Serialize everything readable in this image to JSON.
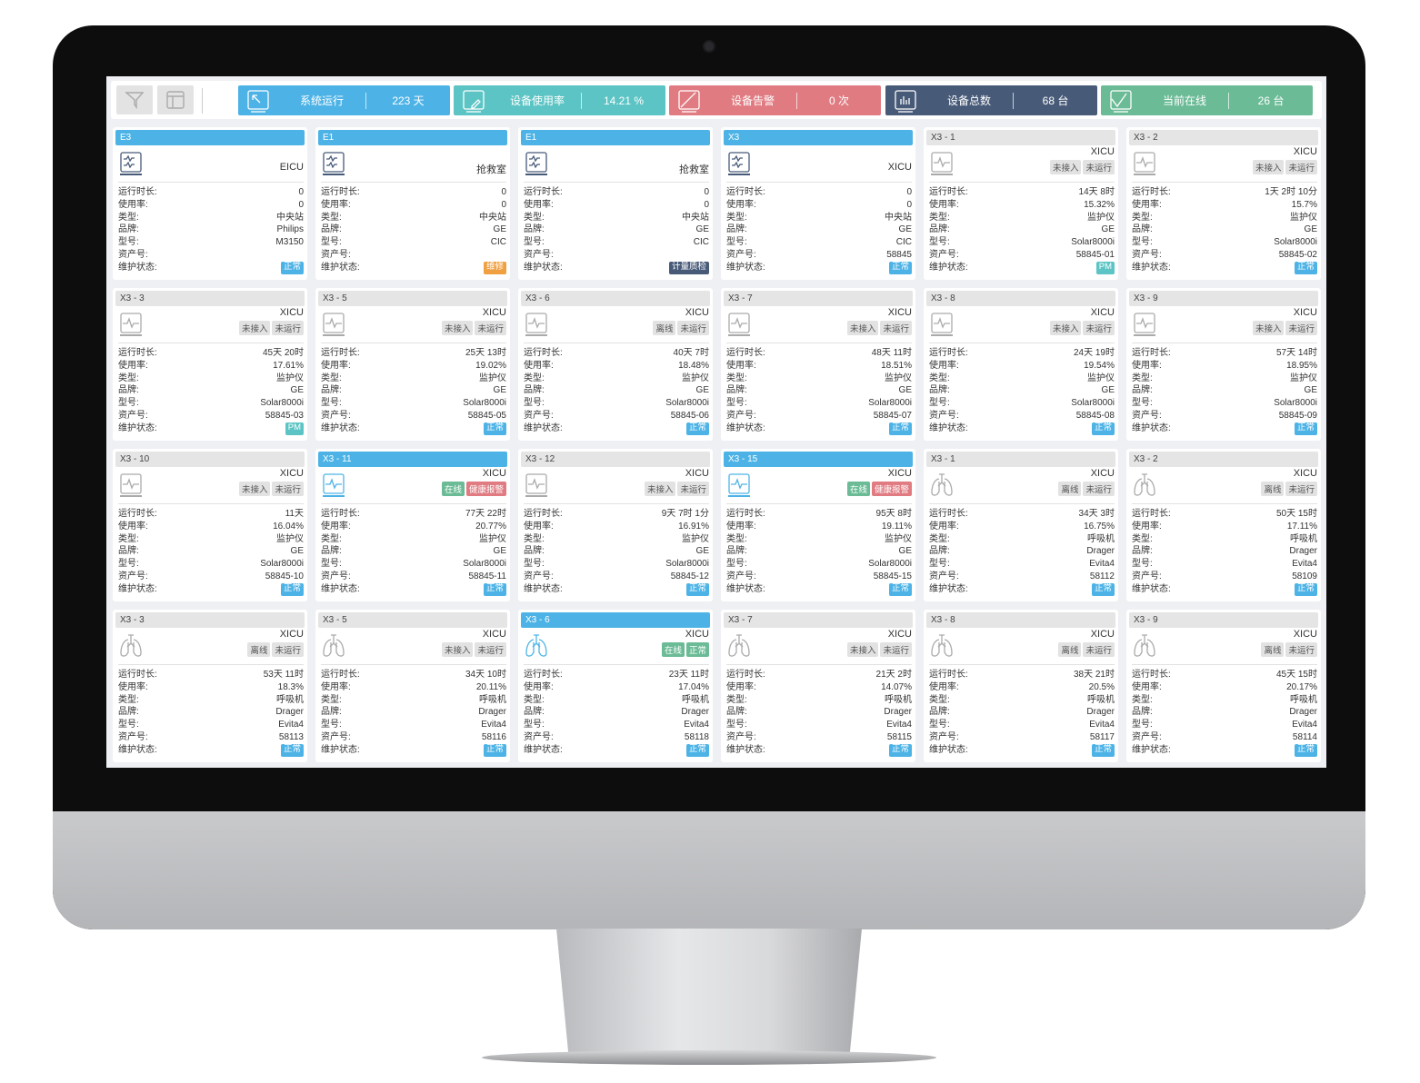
{
  "toolbar": {
    "filter_icon": "filter-icon",
    "layout_icon": "layout-icon"
  },
  "stats": [
    {
      "label": "系统运行",
      "value": "223 天",
      "color": "#4db3e6",
      "icon": "arrow-icon"
    },
    {
      "label": "设备使用率",
      "value": "14.21 %",
      "color": "#5cc4c4",
      "icon": "edit-icon"
    },
    {
      "label": "设备告警",
      "value": "0 次",
      "color": "#e07b82",
      "icon": "alarm-icon"
    },
    {
      "label": "设备总数",
      "value": "68 台",
      "color": "#475a78",
      "icon": "bar-chart-icon"
    },
    {
      "label": "当前在线",
      "value": "26 台",
      "color": "#6bbb96",
      "icon": "check-icon"
    }
  ],
  "field_labels": [
    "运行时长:",
    "使用率:",
    "类型:",
    "品牌:",
    "型号:",
    "资产号:",
    "维护状态:"
  ],
  "status_colors": {
    "正常": "#4db3e6",
    "维修": "#f0a040",
    "计量质检": "#475a78",
    "PM": "#5cc4c4"
  },
  "cards": [
    {
      "title": "E3",
      "active": true,
      "icon": "station",
      "dept": "EICU",
      "badges": [],
      "values": [
        "0",
        "0",
        "中央站",
        "Philips",
        "M3150",
        ""
      ],
      "status": "正常"
    },
    {
      "title": "E1",
      "active": true,
      "icon": "station",
      "dept": "抢救室",
      "badges": [],
      "values": [
        "0",
        "0",
        "中央站",
        "GE",
        "CIC",
        ""
      ],
      "status": "维修"
    },
    {
      "title": "E1",
      "active": true,
      "icon": "station",
      "dept": "抢救室",
      "badges": [],
      "values": [
        "0",
        "0",
        "中央站",
        "GE",
        "CIC",
        ""
      ],
      "status": "计量质检"
    },
    {
      "title": "X3",
      "active": true,
      "icon": "station",
      "dept": "XICU",
      "badges": [],
      "values": [
        "0",
        "0",
        "中央站",
        "GE",
        "CIC",
        "58845"
      ],
      "status": "正常"
    },
    {
      "title": "X3 - 1",
      "active": false,
      "icon": "monitor",
      "dept": "XICU",
      "badges": [
        "未接入",
        "未运行"
      ],
      "values": [
        "14天 8时",
        "15.32%",
        "监护仪",
        "GE",
        "Solar8000i",
        "58845-01"
      ],
      "status": "PM"
    },
    {
      "title": "X3 - 2",
      "active": false,
      "icon": "monitor",
      "dept": "XICU",
      "badges": [
        "未接入",
        "未运行"
      ],
      "values": [
        "1天 2时 10分",
        "15.7%",
        "监护仪",
        "GE",
        "Solar8000i",
        "58845-02"
      ],
      "status": "正常"
    },
    {
      "title": "X3 - 3",
      "active": false,
      "icon": "monitor",
      "dept": "XICU",
      "badges": [
        "未接入",
        "未运行"
      ],
      "values": [
        "45天 20时",
        "17.61%",
        "监护仪",
        "GE",
        "Solar8000i",
        "58845-03"
      ],
      "status": "PM"
    },
    {
      "title": "X3 - 5",
      "active": false,
      "icon": "monitor",
      "dept": "XICU",
      "badges": [
        "未接入",
        "未运行"
      ],
      "values": [
        "25天 13时",
        "19.02%",
        "监护仪",
        "GE",
        "Solar8000i",
        "58845-05"
      ],
      "status": "正常"
    },
    {
      "title": "X3 - 6",
      "active": false,
      "icon": "monitor",
      "dept": "XICU",
      "badges": [
        "离线",
        "未运行"
      ],
      "values": [
        "40天 7时",
        "18.48%",
        "监护仪",
        "GE",
        "Solar8000i",
        "58845-06"
      ],
      "status": "正常"
    },
    {
      "title": "X3 - 7",
      "active": false,
      "icon": "monitor",
      "dept": "XICU",
      "badges": [
        "未接入",
        "未运行"
      ],
      "values": [
        "48天 11时",
        "18.51%",
        "监护仪",
        "GE",
        "Solar8000i",
        "58845-07"
      ],
      "status": "正常"
    },
    {
      "title": "X3 - 8",
      "active": false,
      "icon": "monitor",
      "dept": "XICU",
      "badges": [
        "未接入",
        "未运行"
      ],
      "values": [
        "24天 19时",
        "19.54%",
        "监护仪",
        "GE",
        "Solar8000i",
        "58845-08"
      ],
      "status": "正常"
    },
    {
      "title": "X3 - 9",
      "active": false,
      "icon": "monitor",
      "dept": "XICU",
      "badges": [
        "未接入",
        "未运行"
      ],
      "values": [
        "57天 14时",
        "18.95%",
        "监护仪",
        "GE",
        "Solar8000i",
        "58845-09"
      ],
      "status": "正常"
    },
    {
      "title": "X3 - 10",
      "active": false,
      "icon": "monitor",
      "dept": "XICU",
      "badges": [
        "未接入",
        "未运行"
      ],
      "values": [
        "11天",
        "16.04%",
        "监护仪",
        "GE",
        "Solar8000i",
        "58845-10"
      ],
      "status": "正常"
    },
    {
      "title": "X3 - 11",
      "active": true,
      "icon": "monitor",
      "dept": "XICU",
      "badges": [
        "在线",
        "健康报警"
      ],
      "values": [
        "77天 22时",
        "20.77%",
        "监护仪",
        "GE",
        "Solar8000i",
        "58845-11"
      ],
      "status": "正常"
    },
    {
      "title": "X3 - 12",
      "active": false,
      "icon": "monitor",
      "dept": "XICU",
      "badges": [
        "未接入",
        "未运行"
      ],
      "values": [
        "9天 7时 1分",
        "16.91%",
        "监护仪",
        "GE",
        "Solar8000i",
        "58845-12"
      ],
      "status": "正常"
    },
    {
      "title": "X3 - 15",
      "active": true,
      "icon": "monitor",
      "dept": "XICU",
      "badges": [
        "在线",
        "健康报警"
      ],
      "values": [
        "95天 8时",
        "19.11%",
        "监护仪",
        "GE",
        "Solar8000i",
        "58845-15"
      ],
      "status": "正常"
    },
    {
      "title": "X3 - 1",
      "active": false,
      "icon": "ventilator",
      "dept": "XICU",
      "badges": [
        "离线",
        "未运行"
      ],
      "values": [
        "34天 3时",
        "16.75%",
        "呼吸机",
        "Drager",
        "Evita4",
        "58112"
      ],
      "status": "正常"
    },
    {
      "title": "X3 - 2",
      "active": false,
      "icon": "ventilator",
      "dept": "XICU",
      "badges": [
        "离线",
        "未运行"
      ],
      "values": [
        "50天 15时",
        "17.11%",
        "呼吸机",
        "Drager",
        "Evita4",
        "58109"
      ],
      "status": "正常"
    },
    {
      "title": "X3 - 3",
      "active": false,
      "icon": "ventilator",
      "dept": "XICU",
      "badges": [
        "离线",
        "未运行"
      ],
      "values": [
        "53天 11时",
        "18.3%",
        "呼吸机",
        "Drager",
        "Evita4",
        "58113"
      ],
      "status": "正常"
    },
    {
      "title": "X3 - 5",
      "active": false,
      "icon": "ventilator",
      "dept": "XICU",
      "badges": [
        "未接入",
        "未运行"
      ],
      "values": [
        "34天 10时",
        "20.11%",
        "呼吸机",
        "Drager",
        "Evita4",
        "58116"
      ],
      "status": "正常"
    },
    {
      "title": "X3 - 6",
      "active": true,
      "icon": "ventilator",
      "dept": "XICU",
      "badges": [
        "在线",
        "正常"
      ],
      "values": [
        "23天 11时",
        "17.04%",
        "呼吸机",
        "Drager",
        "Evita4",
        "58118"
      ],
      "status": "正常"
    },
    {
      "title": "X3 - 7",
      "active": false,
      "icon": "ventilator",
      "dept": "XICU",
      "badges": [
        "未接入",
        "未运行"
      ],
      "values": [
        "21天 2时",
        "14.07%",
        "呼吸机",
        "Drager",
        "Evita4",
        "58115"
      ],
      "status": "正常"
    },
    {
      "title": "X3 - 8",
      "active": false,
      "icon": "ventilator",
      "dept": "XICU",
      "badges": [
        "离线",
        "未运行"
      ],
      "values": [
        "38天 21时",
        "20.5%",
        "呼吸机",
        "Drager",
        "Evita4",
        "58117"
      ],
      "status": "正常"
    },
    {
      "title": "X3 - 9",
      "active": false,
      "icon": "ventilator",
      "dept": "XICU",
      "badges": [
        "离线",
        "未运行"
      ],
      "values": [
        "45天 15时",
        "20.17%",
        "呼吸机",
        "Drager",
        "Evita4",
        "58114"
      ],
      "status": "正常"
    }
  ]
}
